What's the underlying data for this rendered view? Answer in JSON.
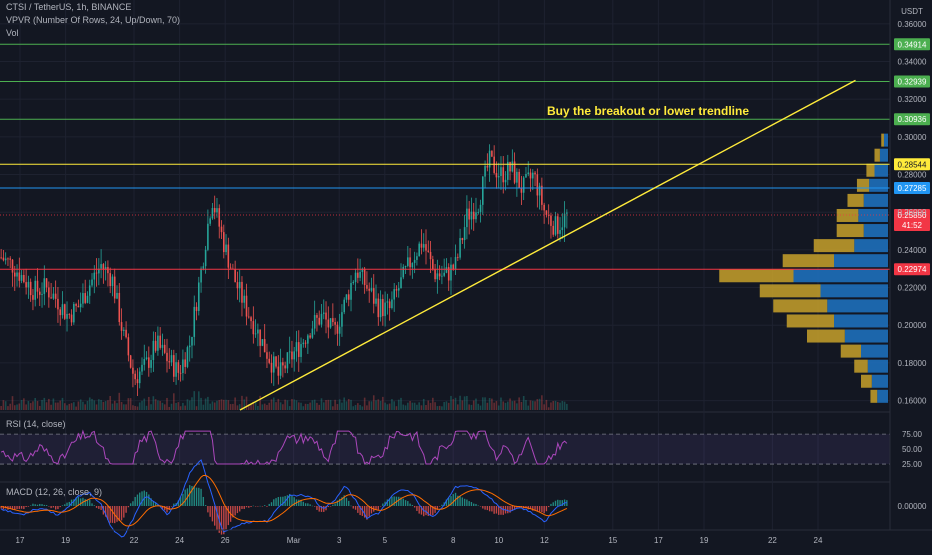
{
  "header": {
    "symbol_line": "CTSI / TetherUS, 1h, BINANCE",
    "vpvr_line": "VPVR (Number Of Rows, 24, Up/Down, 70)",
    "vol_line": "Vol",
    "currency": "USDT"
  },
  "annotation": "Buy the breakout or lower trendline",
  "chart_data": {
    "type": "candlestick",
    "y_axis": {
      "range": [
        0.155,
        0.37
      ],
      "ticks": [
        "0.36000",
        "0.34000",
        "0.32000",
        "0.30000",
        "0.28000",
        "0.26000",
        "0.24000",
        "0.22000",
        "0.20000",
        "0.18000",
        "0.16000"
      ]
    },
    "x_axis": {
      "ticks": [
        "17",
        "19",
        "22",
        "24",
        "26",
        "Mar",
        "3",
        "5",
        "8",
        "10",
        "12",
        "15",
        "17",
        "19",
        "22",
        "24"
      ]
    },
    "levels": [
      {
        "value": 0.34914,
        "label": "0.34914",
        "color": "#4caf50"
      },
      {
        "value": 0.32939,
        "label": "0.32939",
        "color": "#4caf50"
      },
      {
        "value": 0.30936,
        "label": "0.30936",
        "color": "#4caf50"
      },
      {
        "value": 0.28544,
        "label": "0.28544",
        "color": "#ffeb3b"
      },
      {
        "value": 0.27285,
        "label": "0.27285",
        "color": "#2196f3"
      },
      {
        "value": 0.22974,
        "label": "0.22974",
        "color": "#f23645"
      }
    ],
    "current_price": {
      "value": 0.2585,
      "label": "0.25850",
      "countdown": "41:52",
      "color": "#f23645"
    },
    "price_path": [
      [
        0.236,
        -4
      ],
      [
        0.232,
        -3
      ],
      [
        0.225,
        -2
      ],
      [
        0.218,
        -1
      ],
      [
        0.22,
        0
      ],
      [
        0.214,
        1
      ],
      [
        0.205,
        2
      ],
      [
        0.21,
        3
      ],
      [
        0.222,
        4
      ],
      [
        0.232,
        5
      ],
      [
        0.225,
        6
      ],
      [
        0.195,
        7
      ],
      [
        0.172,
        8
      ],
      [
        0.178,
        9
      ],
      [
        0.19,
        10
      ],
      [
        0.182,
        11
      ],
      [
        0.175,
        12
      ],
      [
        0.19,
        13
      ],
      [
        0.228,
        14
      ],
      [
        0.268,
        15
      ],
      [
        0.245,
        16
      ],
      [
        0.225,
        17
      ],
      [
        0.21,
        18
      ],
      [
        0.198,
        19
      ],
      [
        0.185,
        20
      ],
      [
        0.173,
        21
      ],
      [
        0.182,
        22
      ],
      [
        0.19,
        23
      ],
      [
        0.2,
        24
      ],
      [
        0.205,
        25
      ],
      [
        0.195,
        26
      ],
      [
        0.212,
        27
      ],
      [
        0.23,
        28
      ],
      [
        0.22,
        29
      ],
      [
        0.21,
        30
      ],
      [
        0.208,
        31
      ],
      [
        0.222,
        32
      ],
      [
        0.235,
        33
      ],
      [
        0.245,
        34
      ],
      [
        0.228,
        35
      ],
      [
        0.226,
        36
      ],
      [
        0.232,
        37
      ],
      [
        0.258,
        38
      ],
      [
        0.265,
        39
      ],
      [
        0.287,
        40
      ],
      [
        0.28,
        41
      ],
      [
        0.283,
        42
      ],
      [
        0.272,
        43
      ],
      [
        0.28,
        44
      ],
      [
        0.26,
        45
      ],
      [
        0.252,
        46
      ],
      [
        0.258,
        47
      ]
    ],
    "trendline": {
      "from": [
        10,
        0.155
      ],
      "to": [
        58,
        0.33
      ]
    },
    "rsi": {
      "label": "RSI (14, close)",
      "ticks": [
        "75.00",
        "50.00",
        "25.00"
      ],
      "bands": [
        70,
        30
      ]
    },
    "macd": {
      "label": "MACD (12, 26, close, 9)",
      "ticks": [
        "0.00000"
      ]
    },
    "volume_profile": [
      {
        "price": 0.298,
        "up": 2,
        "down": 3
      },
      {
        "price": 0.29,
        "up": 4,
        "down": 6
      },
      {
        "price": 0.282,
        "up": 6,
        "down": 10
      },
      {
        "price": 0.274,
        "up": 9,
        "down": 14
      },
      {
        "price": 0.266,
        "up": 12,
        "down": 18
      },
      {
        "price": 0.258,
        "up": 16,
        "down": 22
      },
      {
        "price": 0.25,
        "up": 20,
        "down": 18
      },
      {
        "price": 0.242,
        "up": 30,
        "down": 25
      },
      {
        "price": 0.234,
        "up": 38,
        "down": 40
      },
      {
        "price": 0.226,
        "up": 55,
        "down": 70
      },
      {
        "price": 0.218,
        "up": 45,
        "down": 50
      },
      {
        "price": 0.21,
        "up": 40,
        "down": 45
      },
      {
        "price": 0.202,
        "up": 35,
        "down": 40
      },
      {
        "price": 0.194,
        "up": 28,
        "down": 32
      },
      {
        "price": 0.186,
        "up": 15,
        "down": 20
      },
      {
        "price": 0.178,
        "up": 10,
        "down": 15
      },
      {
        "price": 0.17,
        "up": 8,
        "down": 12
      },
      {
        "price": 0.162,
        "up": 5,
        "down": 8
      }
    ]
  }
}
